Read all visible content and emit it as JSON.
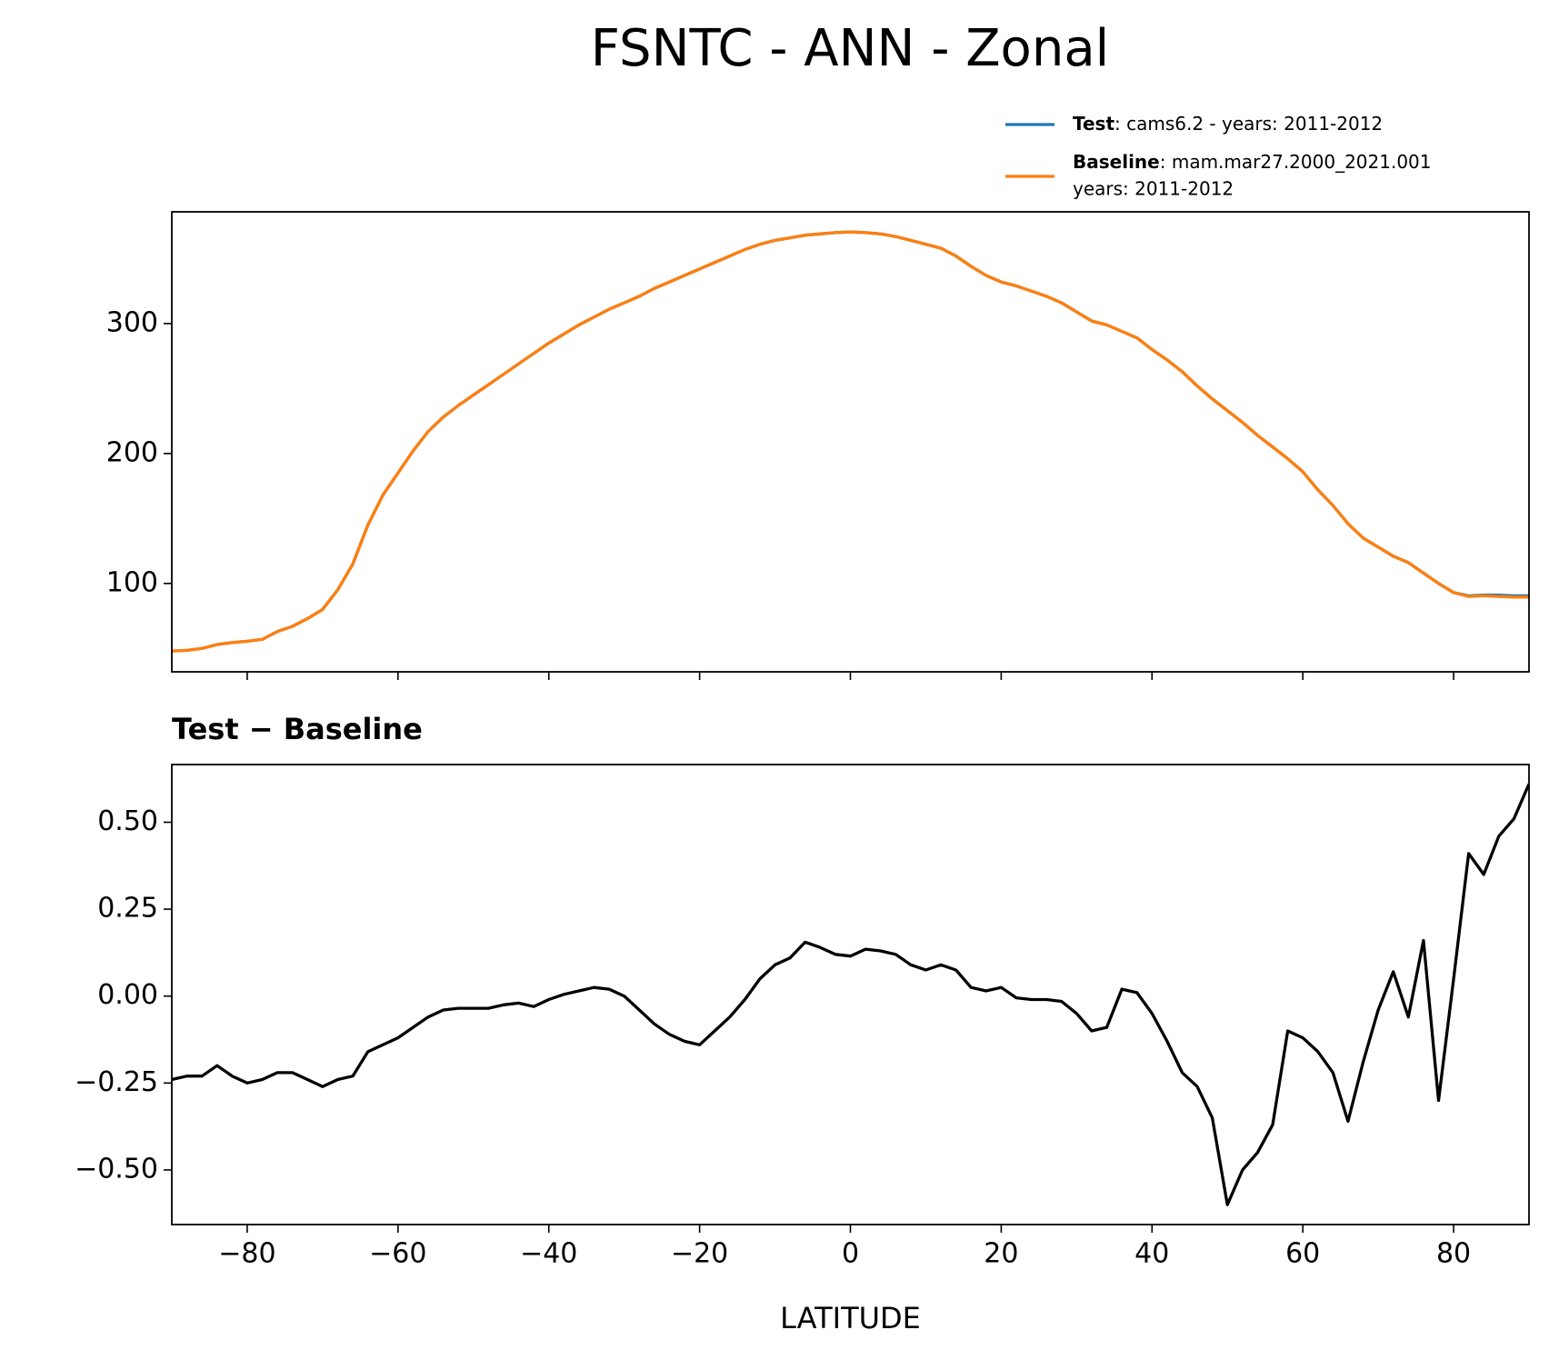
{
  "title": "FSNTC - ANN - Zonal",
  "chart_data": [
    {
      "type": "line",
      "x": [
        -90,
        -88,
        -86,
        -84,
        -82,
        -80,
        -78,
        -76,
        -74,
        -72,
        -70,
        -68,
        -66,
        -64,
        -62,
        -60,
        -58,
        -56,
        -54,
        -52,
        -50,
        -48,
        -46,
        -44,
        -42,
        -40,
        -38,
        -36,
        -34,
        -32,
        -30,
        -28,
        -26,
        -24,
        -22,
        -20,
        -18,
        -16,
        -14,
        -12,
        -10,
        -8,
        -6,
        -4,
        -2,
        0,
        2,
        4,
        6,
        8,
        10,
        12,
        14,
        16,
        18,
        20,
        22,
        24,
        26,
        28,
        30,
        32,
        34,
        36,
        38,
        40,
        42,
        44,
        46,
        48,
        50,
        52,
        54,
        56,
        58,
        60,
        62,
        64,
        66,
        68,
        70,
        72,
        74,
        76,
        78,
        80,
        82,
        84,
        86,
        88,
        90
      ],
      "series": [
        {
          "name": "Test",
          "description": ": cams6.2 - years: 2011-2012",
          "color": "#1f77b4",
          "values": [
            48,
            48.5,
            50,
            53,
            54.5,
            55.5,
            57,
            63,
            67,
            73,
            80,
            95,
            115,
            145,
            168,
            185,
            202,
            217,
            228,
            237,
            245,
            253,
            261,
            269,
            277,
            285,
            292,
            299,
            305,
            311,
            316,
            321,
            327,
            332,
            337,
            342,
            347,
            352,
            357,
            361,
            364,
            366,
            368,
            369,
            370,
            370.5,
            370,
            369,
            367,
            364,
            361,
            358,
            352,
            344,
            337,
            332,
            329,
            325,
            321,
            316,
            309,
            302,
            299,
            294,
            289,
            280,
            272,
            263,
            252,
            242,
            233,
            224,
            214,
            205,
            196,
            186,
            172,
            160,
            146,
            135,
            128,
            121,
            116,
            108,
            100,
            93,
            90.5,
            91,
            91,
            90.5,
            90.5
          ]
        },
        {
          "name": "Baseline",
          "description": [
            ": mam.mar27.2000_2021.001",
            "years: 2011-2012"
          ],
          "color": "#ff7f0e",
          "values": [
            48,
            48.5,
            50,
            53,
            54.5,
            55.5,
            57,
            63,
            67,
            73,
            80,
            95,
            115,
            145,
            168,
            185,
            202,
            217,
            228,
            237,
            245,
            253,
            261,
            269,
            277,
            285,
            292,
            299,
            305,
            311,
            316,
            321,
            327,
            332,
            337,
            342,
            347,
            352,
            357,
            361,
            364,
            366,
            368,
            369,
            370,
            370.5,
            370,
            369,
            367,
            364,
            361,
            358,
            352,
            344,
            337,
            332,
            329,
            325,
            321,
            316,
            309,
            302,
            299,
            294,
            289,
            280,
            272,
            263,
            252,
            242,
            233,
            224,
            214,
            205,
            196,
            186,
            172,
            160,
            146,
            135,
            128,
            121,
            116,
            108,
            100,
            93,
            90,
            90.5,
            90,
            89.5,
            89.5
          ]
        }
      ],
      "xlim": [
        -90,
        90
      ],
      "ylim": [
        32,
        386
      ],
      "yticks": [
        100,
        200,
        300
      ]
    },
    {
      "type": "line",
      "subtitle": "Test − Baseline",
      "x_label": "LATITUDE",
      "x": [
        -90,
        -88,
        -86,
        -84,
        -82,
        -80,
        -78,
        -76,
        -74,
        -72,
        -70,
        -68,
        -66,
        -64,
        -62,
        -60,
        -58,
        -56,
        -54,
        -52,
        -50,
        -48,
        -46,
        -44,
        -42,
        -40,
        -38,
        -36,
        -34,
        -32,
        -30,
        -28,
        -26,
        -24,
        -22,
        -20,
        -18,
        -16,
        -14,
        -12,
        -10,
        -8,
        -6,
        -4,
        -2,
        0,
        2,
        4,
        6,
        8,
        10,
        12,
        14,
        16,
        18,
        20,
        22,
        24,
        26,
        28,
        30,
        32,
        34,
        36,
        38,
        40,
        42,
        44,
        46,
        48,
        50,
        52,
        54,
        56,
        58,
        60,
        62,
        64,
        66,
        68,
        70,
        72,
        74,
        76,
        78,
        80,
        82,
        84,
        86,
        88,
        90
      ],
      "series": [
        {
          "color": "#000000",
          "values": [
            -0.24,
            -0.23,
            -0.23,
            -0.2,
            -0.23,
            -0.25,
            -0.24,
            -0.22,
            -0.22,
            -0.24,
            -0.26,
            -0.24,
            -0.23,
            -0.16,
            -0.14,
            -0.12,
            -0.09,
            -0.06,
            -0.04,
            -0.035,
            -0.035,
            -0.035,
            -0.025,
            -0.02,
            -0.03,
            -0.01,
            0.005,
            0.015,
            0.025,
            0.02,
            0,
            -0.04,
            -0.08,
            -0.11,
            -0.13,
            -0.14,
            -0.1,
            -0.06,
            -0.01,
            0.05,
            0.09,
            0.11,
            0.155,
            0.14,
            0.12,
            0.115,
            0.135,
            0.13,
            0.12,
            0.09,
            0.075,
            0.09,
            0.075,
            0.025,
            0.015,
            0.025,
            -0.005,
            -0.01,
            -0.01,
            -0.015,
            -0.05,
            -0.1,
            -0.09,
            0.02,
            0.01,
            -0.05,
            -0.13,
            -0.22,
            -0.26,
            -0.35,
            -0.6,
            -0.5,
            -0.45,
            -0.37,
            -0.1,
            -0.12,
            -0.16,
            -0.22,
            -0.36,
            -0.19,
            -0.04,
            0.07,
            -0.06,
            0.16,
            -0.3,
            0.05,
            0.41,
            0.35,
            0.46,
            0.51,
            0.61
          ]
        }
      ],
      "xlim": [
        -90,
        90
      ],
      "xticks": [
        {
          "value": -80,
          "label": "−80"
        },
        {
          "value": -60,
          "label": "−60"
        },
        {
          "value": -40,
          "label": "−40"
        },
        {
          "value": -20,
          "label": "−20"
        },
        0,
        20,
        40,
        60,
        80
      ],
      "ylim": [
        -0.657,
        0.666
      ],
      "yticks": [
        {
          "value": -0.5,
          "label": "−0.50"
        },
        {
          "value": -0.25,
          "label": "−0.25"
        },
        {
          "value": 0,
          "label": "0.00"
        },
        {
          "value": 0.25,
          "label": "0.25"
        },
        {
          "value": 0.5,
          "label": "0.50"
        }
      ]
    }
  ]
}
